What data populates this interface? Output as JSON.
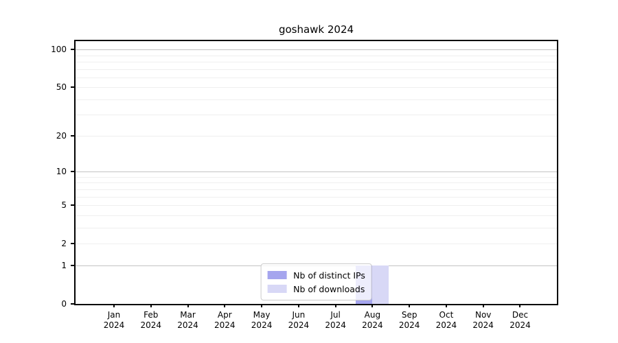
{
  "chart_data": {
    "type": "bar",
    "title": "goshawk 2024",
    "categories": [
      "Jan 2024",
      "Feb 2024",
      "Mar 2024",
      "Apr 2024",
      "May 2024",
      "Jun 2024",
      "Jul 2024",
      "Aug 2024",
      "Sep 2024",
      "Oct 2024",
      "Nov 2024",
      "Dec 2024"
    ],
    "series": [
      {
        "name": "Nb of distinct IPs",
        "color": "#a5a5ee",
        "values": [
          0,
          0,
          0,
          0,
          0,
          0,
          0,
          1,
          0,
          0,
          0,
          0
        ]
      },
      {
        "name": "Nb of downloads",
        "color": "#d8d8f6",
        "values": [
          0,
          0,
          0,
          0,
          0,
          0,
          0,
          1,
          0,
          0,
          0,
          0
        ]
      }
    ],
    "xlabel": "",
    "ylabel": "",
    "yscale": "log1p",
    "ylim": [
      0,
      115
    ],
    "yticks": [
      0,
      1,
      2,
      5,
      10,
      20,
      50,
      100
    ],
    "grid": {
      "decade_lines": [
        1,
        10,
        100
      ],
      "minor_lines": [
        2,
        3,
        4,
        5,
        6,
        7,
        8,
        9,
        20,
        30,
        40,
        50,
        60,
        70,
        80,
        90
      ]
    },
    "legend": {
      "position": "lower center",
      "entries": [
        "Nb of distinct IPs",
        "Nb of downloads"
      ]
    },
    "colors": {
      "background": "#ffffff",
      "axis": "#000000",
      "decade_grid": "#c2c2c2",
      "minor_grid": "#efefef",
      "legend_border": "#cccccc",
      "text": "#000000"
    }
  }
}
